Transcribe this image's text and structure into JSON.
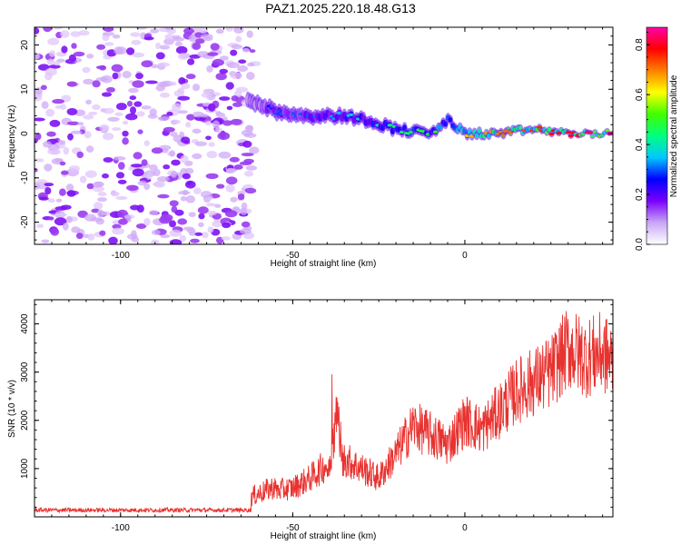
{
  "title": "PAZ1.2025.220.18.48.G13",
  "colors": {
    "snr_line": "#e8322f",
    "background": "#ffffff",
    "axes": "#000000"
  },
  "chart_data": [
    {
      "type": "heatmap",
      "title": "PAZ1.2025.220.18.48.G13",
      "xlabel": "Height of straight line (km)",
      "ylabel": "Frequency (Hz)",
      "xlim": [
        -125,
        43
      ],
      "ylim": [
        -25,
        24
      ],
      "x_ticks": [
        -100,
        -50,
        0
      ],
      "y_ticks": [
        -20,
        -10,
        0,
        10,
        20
      ],
      "colorbar": {
        "label": "Normalized spectral amplitude",
        "range": [
          0.0,
          0.87
        ],
        "ticks": [
          0.0,
          0.2,
          0.4,
          0.6,
          0.8
        ],
        "colormap": [
          "#ffffff",
          "#c9a6f5",
          "#7a00ff",
          "#0000ff",
          "#00c8ff",
          "#00ff80",
          "#40ff00",
          "#ffff00",
          "#ff8000",
          "#ff0000",
          "#ff00aa"
        ]
      },
      "noise_region": {
        "x": [
          -125,
          -63
        ],
        "y": [
          -25,
          24
        ],
        "amplitude": 0.1
      },
      "signal_ridge": {
        "x": [
          -63,
          -55,
          -45,
          -35,
          -28,
          -20,
          -10,
          -5,
          0,
          10,
          20,
          30,
          43
        ],
        "frequency": [
          8,
          5,
          4,
          4,
          3,
          1,
          0,
          3,
          0,
          0,
          1,
          0,
          0
        ],
        "amplitude": [
          0.15,
          0.3,
          0.3,
          0.35,
          0.4,
          0.45,
          0.5,
          0.55,
          0.65,
          0.7,
          0.75,
          0.8,
          0.85
        ]
      }
    },
    {
      "type": "line",
      "xlabel": "Height of straight line (km)",
      "ylabel": "SNR (10 * v/v)",
      "xlim": [
        -125,
        43
      ],
      "ylim": [
        0,
        4500
      ],
      "x_ticks": [
        -100,
        -50,
        0
      ],
      "y_ticks": [
        1000,
        2000,
        3000,
        4000
      ],
      "x": [
        -125,
        -110,
        -95,
        -80,
        -70,
        -62,
        -60,
        -50,
        -45,
        -40,
        -37,
        -35,
        -30,
        -25,
        -20,
        -15,
        -10,
        -5,
        0,
        5,
        10,
        15,
        20,
        25,
        30,
        35,
        40,
        43
      ],
      "values": [
        130,
        140,
        150,
        180,
        170,
        160,
        480,
        600,
        800,
        1100,
        2900,
        1200,
        1000,
        800,
        1300,
        1900,
        1700,
        1500,
        2000,
        1800,
        2200,
        2600,
        2800,
        3000,
        3500,
        3300,
        3400,
        3200
      ]
    }
  ]
}
